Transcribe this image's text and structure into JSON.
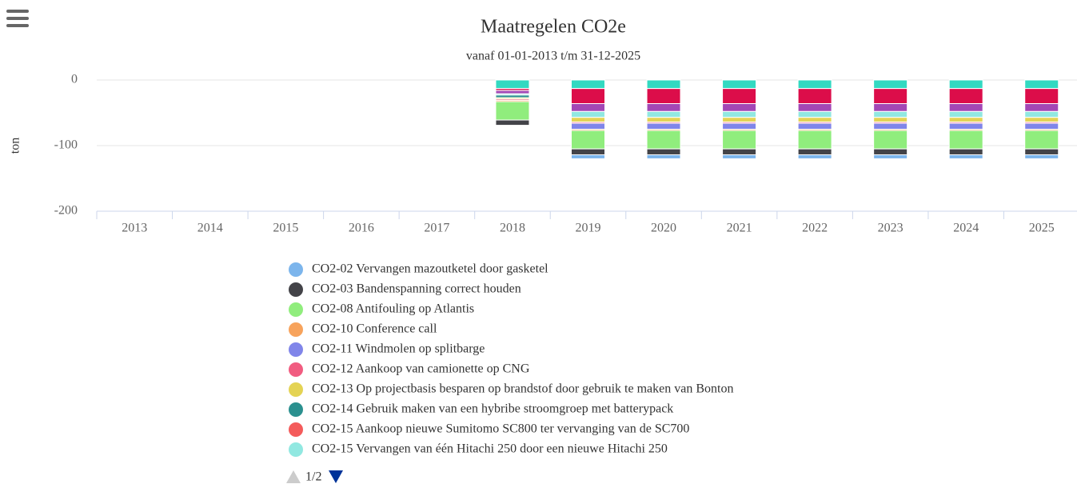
{
  "chart_data": {
    "type": "stacked_bar",
    "title": "Maatregelen CO2e",
    "subtitle": "vanaf 01-01-2013 t/m 31-12-2025",
    "y_label": "ton",
    "categories": [
      "2013",
      "2014",
      "2015",
      "2016",
      "2017",
      "2018",
      "2019",
      "2020",
      "2021",
      "2022",
      "2023",
      "2024",
      "2025"
    ],
    "ylim": [
      -200,
      0
    ],
    "yticks": [
      0,
      -100,
      -200
    ],
    "grid": true,
    "legend_page": "1/2",
    "series": [
      {
        "name": "CO2-02 Vervangen mazoutketel door gasketel",
        "color": "#7cb5ec",
        "values": [
          null,
          null,
          null,
          null,
          null,
          0,
          -6,
          -6,
          -6,
          -6,
          -6,
          -6,
          -6
        ]
      },
      {
        "name": "CO2-03 Bandenspanning correct houden",
        "color": "#434348",
        "values": [
          null,
          null,
          null,
          null,
          null,
          -8,
          -9,
          -9,
          -9,
          -9,
          -9,
          -9,
          -9
        ]
      },
      {
        "name": "CO2-08 Antifouling op Atlantis",
        "color": "#90ed7d",
        "values": [
          null,
          null,
          null,
          null,
          null,
          -28,
          -28,
          -28,
          -28,
          -28,
          -28,
          -28,
          -28
        ]
      },
      {
        "name": "CO2-10 Conference call",
        "color": "#f7a35c",
        "values": [
          null,
          null,
          null,
          null,
          null,
          -2,
          -2,
          -2,
          -2,
          -2,
          -2,
          -2,
          -2
        ]
      },
      {
        "name": "CO2-11 Windmolen op splitbarge",
        "color": "#8085e9",
        "values": [
          null,
          null,
          null,
          null,
          null,
          0,
          -9,
          -9,
          -9,
          -9,
          -9,
          -9,
          -9
        ]
      },
      {
        "name": "CO2-12 Aankoop van camionette op CNG",
        "color": "#f15c80",
        "values": [
          null,
          null,
          null,
          null,
          null,
          -2,
          -2,
          -2,
          -2,
          -2,
          -2,
          -2,
          -2
        ]
      },
      {
        "name": "CO2-13 Op projectbasis besparen op brandstof door gebruik te maken van Bonton",
        "color": "#e4d354",
        "values": [
          null,
          null,
          null,
          null,
          null,
          -2,
          -7,
          -7,
          -7,
          -7,
          -7,
          -7,
          -7
        ]
      },
      {
        "name": "CO2-14 Gebruik maken van een hybribe stroomgroep met batterypack",
        "color": "#2b908f",
        "values": [
          null,
          null,
          null,
          null,
          null,
          -4,
          0,
          0,
          0,
          0,
          0,
          0,
          0
        ]
      },
      {
        "name": "CO2-15 Aankoop nieuwe Sumitomo SC800 ter vervanging van de SC700",
        "color": "#f45b5b",
        "values": [
          null,
          null,
          null,
          null,
          null,
          0,
          0,
          0,
          0,
          0,
          0,
          0,
          0
        ]
      },
      {
        "name": "CO2-15 Vervangen van één Hitachi 250 door een nieuwe Hitachi 250",
        "color": "#91e8e1",
        "values": [
          null,
          null,
          null,
          null,
          null,
          -2,
          -9,
          -9,
          -9,
          -9,
          -9,
          -9,
          -9
        ]
      },
      {
        "color": "#a347b5",
        "values": [
          null,
          null,
          null,
          null,
          null,
          -5,
          -12,
          -12,
          -12,
          -12,
          -12,
          -12,
          -12
        ]
      },
      {
        "color": "#dc0d4a",
        "values": [
          null,
          null,
          null,
          null,
          null,
          -3,
          -23,
          -23,
          -23,
          -23,
          -23,
          -23,
          -23
        ]
      },
      {
        "color": "#33d9c1",
        "values": [
          null,
          null,
          null,
          null,
          null,
          -13,
          -13,
          -13,
          -13,
          -13,
          -13,
          -13,
          -13
        ]
      }
    ]
  }
}
